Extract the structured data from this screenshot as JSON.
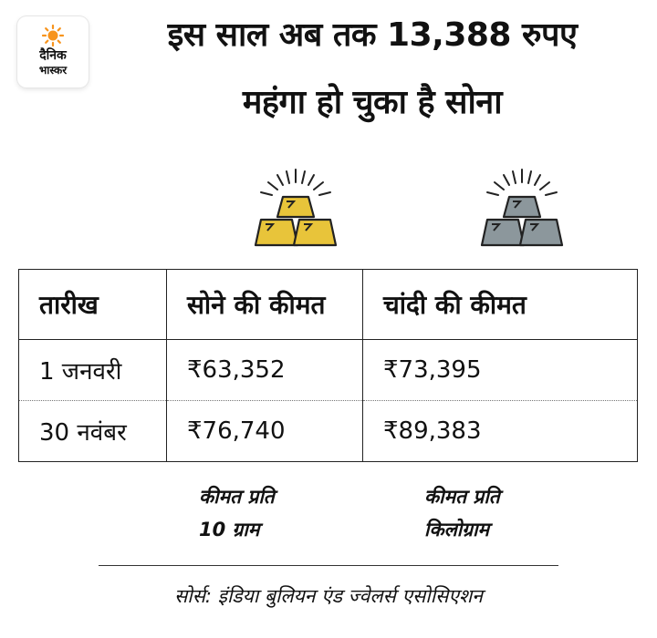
{
  "brand": {
    "line1": "दैनिक",
    "line2": "भास्कर",
    "sun_color": "#f7941d"
  },
  "title": {
    "line1": "इस साल अब तक 13,388 रुपए",
    "line2": "महंगा हो चुका है सोना"
  },
  "icons": {
    "gold": "gold-bars-icon",
    "silver": "silver-bars-icon",
    "gold_color": "#e8c43a",
    "silver_color": "#8c979c"
  },
  "table": {
    "headers": [
      "तारीख",
      "सोने की कीमत",
      "चांदी की कीमत"
    ],
    "rows": [
      [
        "1 जनवरी",
        "₹63,352",
        "₹73,395"
      ],
      [
        "30 नवंबर",
        "₹76,740",
        "₹89,383"
      ]
    ]
  },
  "notes": {
    "gold": {
      "line1": "कीमत प्रति",
      "line2": "10 ग्राम"
    },
    "silver": {
      "line1": "कीमत प्रति",
      "line2": "किलोग्राम"
    }
  },
  "source": "सोर्स: इंडिया बुलियन एंड ज्वेलर्स एसोसिएशन"
}
